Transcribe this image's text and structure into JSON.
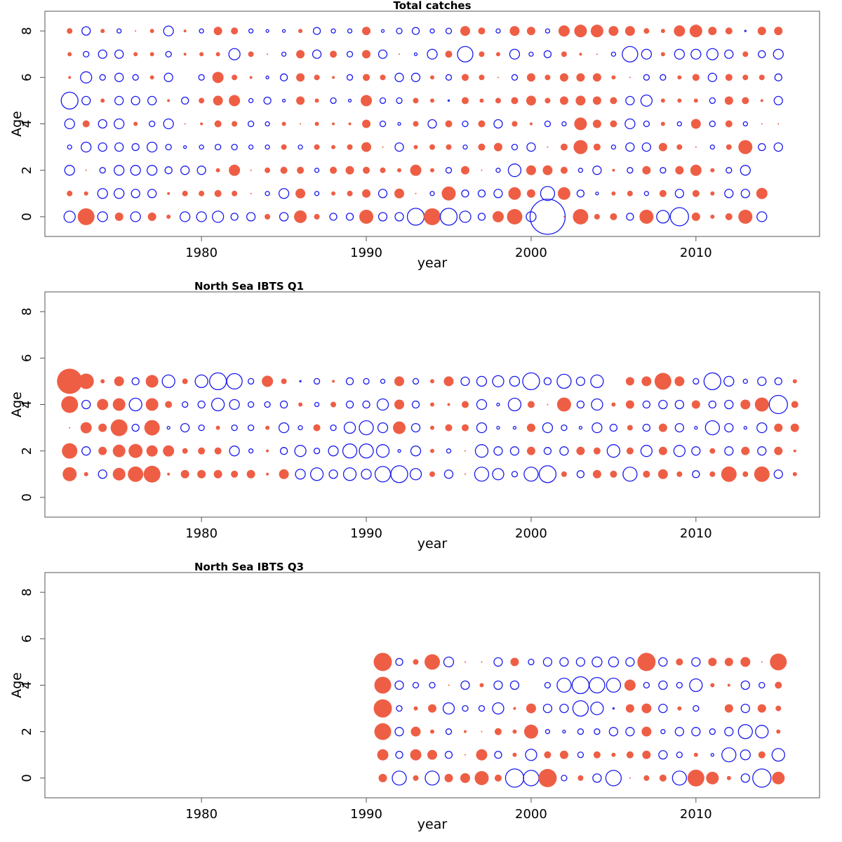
{
  "colors": {
    "positive": "#EE5E45",
    "negative": "#1A1AEE"
  },
  "chart_data": [
    {
      "type": "scatter",
      "subtype": "bubble-residuals",
      "title": "Total catches",
      "xlabel": "year",
      "ylabel": "Age",
      "xticks": [
        1980,
        1990,
        2000,
        2010
      ],
      "yticks": [
        0,
        2,
        4,
        6,
        8
      ],
      "xlim": [
        1970.5,
        2017.5
      ],
      "ylim": [
        -0.85,
        8.85
      ],
      "grid": false,
      "legend": "none",
      "encoding": "value sign: positive = filled red, negative = open blue; radius proportional to |value|",
      "years_start": 1972,
      "ages": [
        0,
        1,
        2,
        3,
        4,
        5,
        6,
        7,
        8
      ],
      "residuals": [
        [
          -0.8,
          1.2,
          -0.7,
          0.6,
          -0.7,
          0.6,
          0.3,
          -0.7,
          -0.7,
          -0.8,
          -0.5,
          -0.6,
          0.4,
          -0.6,
          0.9,
          0.4,
          -0.5,
          -0.5,
          1.0,
          -0.6,
          -0.6,
          -1.2,
          1.2,
          -1.2,
          -0.8,
          -0.5,
          0.8,
          1.1,
          -0.7,
          -2.5,
          0.1,
          1.1,
          0.4,
          0.5,
          -0.5,
          1.0,
          -0.9,
          -1.3,
          0.6,
          0.3,
          0.5,
          1.0,
          -0.7,
          0.0
        ],
        [
          0.4,
          0.3,
          -0.7,
          -0.7,
          -0.6,
          -0.6,
          0.2,
          0.4,
          0.4,
          0.5,
          0.4,
          0.1,
          -0.3,
          -0.7,
          0.7,
          -0.3,
          0.3,
          0.4,
          0.6,
          -0.6,
          0.7,
          0.1,
          -0.3,
          1.0,
          -0.5,
          -0.5,
          -0.6,
          0.9,
          0.6,
          -1.0,
          0.9,
          -0.5,
          -0.2,
          0.3,
          0.4,
          -0.3,
          0.5,
          -0.6,
          0.5,
          0.3,
          -0.6,
          -0.6,
          0.8,
          0.0
        ],
        [
          -0.7,
          0.1,
          -0.4,
          -0.7,
          -0.7,
          -0.7,
          -0.5,
          -0.6,
          -0.6,
          0.3,
          0.8,
          0.1,
          0.4,
          0.5,
          0.5,
          -0.3,
          0.5,
          0.6,
          0.5,
          0.4,
          0.3,
          0.8,
          0.3,
          -0.4,
          0.6,
          0.1,
          -0.3,
          -0.9,
          0.7,
          0.7,
          0.5,
          -0.3,
          -0.6,
          0.2,
          -0.4,
          0.6,
          -0.4,
          0.6,
          0.8,
          0.3,
          -0.4,
          -0.7,
          0.0,
          0.0
        ],
        [
          -0.3,
          -0.7,
          -0.6,
          -0.6,
          -0.5,
          -0.7,
          -0.4,
          -0.2,
          -0.3,
          -0.4,
          -0.4,
          -0.3,
          -0.3,
          0.4,
          -0.3,
          0.4,
          0.3,
          0.4,
          0.7,
          0.1,
          -0.6,
          0.3,
          0.4,
          0.4,
          -0.3,
          0.5,
          0.6,
          -0.4,
          -0.6,
          0.1,
          0.5,
          1.0,
          0.5,
          -0.3,
          -0.6,
          -0.6,
          0.6,
          0.4,
          0.1,
          -0.3,
          0.4,
          1.0,
          -0.5,
          -0.6
        ],
        [
          -0.7,
          0.5,
          -0.6,
          -0.7,
          0.3,
          -0.4,
          -0.7,
          0.1,
          0.2,
          0.5,
          0.4,
          -0.4,
          -0.3,
          0.3,
          0.1,
          0.3,
          0.2,
          0.2,
          0.6,
          -0.4,
          -0.2,
          0.4,
          -0.6,
          0.5,
          -0.4,
          0.5,
          -0.6,
          0.4,
          0.2,
          -0.4,
          -0.3,
          0.9,
          0.6,
          0.5,
          -0.7,
          -0.4,
          0.3,
          -0.3,
          0.7,
          -0.4,
          0.5,
          -0.3,
          0.1,
          0.1
        ],
        [
          -1.2,
          -0.6,
          0.3,
          -0.6,
          -0.6,
          -0.6,
          0.2,
          -0.5,
          0.4,
          0.7,
          0.8,
          -0.3,
          -0.5,
          -0.2,
          0.6,
          0.3,
          -0.4,
          -0.2,
          0.8,
          -0.4,
          -0.4,
          0.4,
          0.3,
          -0.1,
          0.5,
          0.3,
          0.4,
          0.5,
          0.7,
          0.4,
          0.6,
          0.7,
          0.6,
          0.5,
          -0.6,
          -0.8,
          0.3,
          0.3,
          0.3,
          -0.4,
          0.6,
          0.5,
          0.2,
          -0.6
        ],
        [
          0.2,
          -0.8,
          -0.4,
          -0.6,
          -0.4,
          0.3,
          -0.6,
          0.0,
          -0.4,
          0.8,
          0.4,
          0.2,
          -0.2,
          -0.5,
          0.6,
          0.4,
          0.2,
          -0.4,
          0.5,
          0.4,
          -0.6,
          -0.6,
          0.3,
          -0.4,
          0.5,
          0.4,
          0.1,
          -0.4,
          0.6,
          0.4,
          0.6,
          0.6,
          0.6,
          0.3,
          0.1,
          -0.4,
          -0.4,
          0.3,
          0.5,
          -0.6,
          0.5,
          0.4,
          0.4,
          -0.5
        ],
        [
          0.3,
          -0.4,
          -0.6,
          -0.6,
          0.3,
          0.3,
          -0.4,
          0.2,
          0.3,
          0.3,
          -0.8,
          0.4,
          0.1,
          -0.3,
          0.6,
          -0.6,
          0.5,
          -0.4,
          0.6,
          -0.6,
          0.1,
          -0.2,
          -0.7,
          0.5,
          -1.1,
          0.4,
          0.3,
          -0.7,
          -0.3,
          -0.5,
          0.4,
          0.2,
          0.1,
          -0.3,
          -1.1,
          -0.7,
          0.3,
          -0.7,
          -0.7,
          -0.8,
          -0.6,
          0.4,
          -0.5,
          -0.7
        ],
        [
          0.4,
          -0.6,
          0.3,
          -0.3,
          0.1,
          0.3,
          -0.7,
          0.2,
          -0.3,
          0.6,
          0.5,
          -0.3,
          -0.2,
          -0.2,
          0.3,
          -0.5,
          -0.3,
          -0.3,
          0.6,
          -0.2,
          -0.4,
          -0.5,
          -0.3,
          -0.4,
          0.7,
          0.5,
          -0.3,
          0.7,
          0.6,
          -0.3,
          0.8,
          0.9,
          0.9,
          0.7,
          0.7,
          0.4,
          0.3,
          0.8,
          0.9,
          0.6,
          0.5,
          -0.1,
          0.6,
          0.6
        ]
      ]
    },
    {
      "type": "scatter",
      "subtype": "bubble-residuals",
      "title": "North Sea IBTS Q1",
      "xlabel": "year",
      "ylabel": "Age",
      "xticks": [
        1980,
        1990,
        2000,
        2010
      ],
      "yticks": [
        0,
        2,
        4,
        6,
        8
      ],
      "xlim": [
        1970.5,
        2017.5
      ],
      "ylim": [
        -0.85,
        8.85
      ],
      "grid": false,
      "legend": "none",
      "encoding": "value sign: positive = filled red, negative = open blue; radius proportional to |value|",
      "years_start": 1972,
      "ages": [
        1,
        2,
        3,
        4,
        5
      ],
      "residuals": [
        [
          1.0,
          0.3,
          -0.6,
          0.9,
          1.1,
          1.2,
          0.2,
          0.6,
          0.6,
          0.6,
          0.5,
          0.6,
          0.2,
          0.7,
          -0.7,
          -0.9,
          -0.6,
          -0.9,
          -0.7,
          -1.1,
          -1.2,
          -0.8,
          0.4,
          -0.6,
          0.1,
          -1.0,
          -0.8,
          -0.4,
          -1.0,
          -1.2,
          0.4,
          -0.5,
          0.6,
          0.5,
          -1.0,
          0.5,
          0.7,
          0.4,
          -0.5,
          0.4,
          1.1,
          0.4,
          1.1,
          -0.6,
          0.3
        ],
        [
          1.1,
          -0.6,
          0.6,
          0.9,
          1.0,
          0.8,
          0.8,
          0.4,
          0.5,
          0.5,
          -0.7,
          -0.3,
          0.2,
          -0.5,
          -0.8,
          -0.4,
          -0.7,
          -1.0,
          -1.0,
          -0.9,
          -0.2,
          -0.7,
          0.3,
          -0.3,
          0.1,
          -0.9,
          -0.6,
          -0.6,
          0.6,
          -0.5,
          -0.6,
          0.6,
          0.5,
          -0.9,
          0.5,
          -0.8,
          0.6,
          -0.8,
          -0.6,
          0.4,
          -0.6,
          0.6,
          -0.6,
          0.6,
          0.2
        ],
        [
          0.1,
          0.8,
          0.6,
          1.2,
          -0.5,
          1.1,
          -0.2,
          -0.6,
          -0.4,
          0.3,
          -0.4,
          -0.4,
          0.3,
          -0.7,
          -0.3,
          0.5,
          -0.4,
          -0.8,
          -1.0,
          -0.7,
          0.9,
          -0.6,
          0.3,
          0.5,
          0.5,
          -0.7,
          -0.2,
          -0.2,
          0.6,
          -0.7,
          -0.4,
          -0.2,
          -0.7,
          -0.5,
          0.4,
          -0.5,
          0.6,
          -0.6,
          -0.2,
          -1.0,
          -0.6,
          -0.2,
          -0.7,
          0.6,
          0.6
        ],
        [
          1.2,
          -0.6,
          0.8,
          0.9,
          -0.9,
          0.9,
          0.5,
          -0.4,
          -0.5,
          -0.9,
          -0.7,
          -0.4,
          -0.4,
          -0.5,
          0.3,
          -0.3,
          0.4,
          -0.5,
          -0.5,
          -0.8,
          0.7,
          -0.5,
          0.3,
          0.2,
          0.5,
          -0.7,
          -0.2,
          -0.9,
          0.5,
          0.1,
          1.0,
          -0.5,
          -0.8,
          0.3,
          0.6,
          -0.5,
          -0.6,
          -0.6,
          0.6,
          -0.5,
          -0.6,
          0.7,
          1.0,
          -1.3,
          0.5
        ],
        [
          1.8,
          1.1,
          0.3,
          0.7,
          -0.5,
          0.9,
          -0.9,
          0.4,
          -0.9,
          -1.2,
          -1.1,
          -0.4,
          0.8,
          0.4,
          -0.1,
          -0.4,
          0.2,
          -0.5,
          -0.4,
          -0.3,
          0.7,
          -0.4,
          0.3,
          0.7,
          -0.6,
          -0.7,
          -0.8,
          -0.7,
          -1.2,
          -0.5,
          -1.0,
          -0.6,
          -0.9,
          0.0,
          0.6,
          0.7,
          1.2,
          0.7,
          -0.4,
          -1.2,
          -0.7,
          -0.3,
          -0.6,
          -0.5,
          0.3
        ]
      ]
    },
    {
      "type": "scatter",
      "subtype": "bubble-residuals",
      "title": "North Sea IBTS Q3",
      "xlabel": "year",
      "ylabel": "Age",
      "xticks": [
        1980,
        1990,
        2000,
        2010
      ],
      "yticks": [
        0,
        2,
        4,
        6,
        8
      ],
      "xlim": [
        1970.5,
        2017.5
      ],
      "ylim": [
        -0.85,
        8.85
      ],
      "grid": false,
      "legend": "none",
      "encoding": "value sign: positive = filled red, negative = open blue; radius proportional to |value|",
      "years_start": 1991,
      "ages": [
        0,
        1,
        2,
        3,
        4,
        5
      ],
      "residuals": [
        [
          0.6,
          -1.0,
          0.4,
          -1.0,
          0.6,
          0.7,
          1.0,
          0.5,
          -1.3,
          -1.1,
          1.3,
          -0.4,
          0.4,
          -0.6,
          -1.1,
          0.1,
          0.4,
          0.5,
          -1.0,
          1.2,
          0.9,
          0.3,
          -0.6,
          -1.3,
          0.9
        ],
        [
          0.8,
          -0.5,
          0.8,
          0.7,
          -0.5,
          0.1,
          0.8,
          -0.5,
          0.3,
          -0.8,
          0.5,
          0.6,
          -0.4,
          0.5,
          0.3,
          0.5,
          0.6,
          -0.6,
          -0.4,
          0.3,
          -0.2,
          -1.0,
          -0.7,
          0.5,
          -0.9
        ],
        [
          1.2,
          -0.6,
          0.7,
          0.3,
          -0.4,
          0.2,
          0.1,
          0.5,
          0.3,
          1.0,
          -0.3,
          -0.2,
          -0.4,
          -0.4,
          -0.6,
          -0.6,
          0.7,
          -0.3,
          -0.6,
          -0.6,
          -0.4,
          -0.6,
          -1.0,
          -0.9,
          0.3
        ],
        [
          1.3,
          -0.4,
          0.3,
          0.6,
          -0.8,
          -0.4,
          -0.4,
          -0.8,
          0.2,
          0.7,
          -0.6,
          -0.6,
          -1.1,
          -0.9,
          -0.1,
          0.6,
          0.7,
          -0.6,
          0.3,
          -0.4,
          0.0,
          0.6,
          -0.6,
          0.6,
          0.4
        ],
        [
          1.2,
          -0.6,
          -0.4,
          -0.4,
          0.1,
          -0.6,
          0.3,
          -0.6,
          -0.6,
          0.0,
          -0.4,
          -1.0,
          -1.2,
          -1.1,
          -1.0,
          0.8,
          -0.4,
          -0.6,
          -0.4,
          -0.9,
          0.3,
          0.2,
          -0.6,
          -0.4,
          0.5
        ],
        [
          1.3,
          -0.5,
          0.4,
          1.1,
          -0.7,
          0.1,
          0.1,
          -0.6,
          0.6,
          -0.4,
          -0.6,
          -0.6,
          -0.6,
          -0.7,
          -0.7,
          -0.6,
          1.3,
          -0.6,
          0.5,
          -0.6,
          0.6,
          0.6,
          0.7,
          0.1,
          1.2
        ]
      ]
    }
  ]
}
